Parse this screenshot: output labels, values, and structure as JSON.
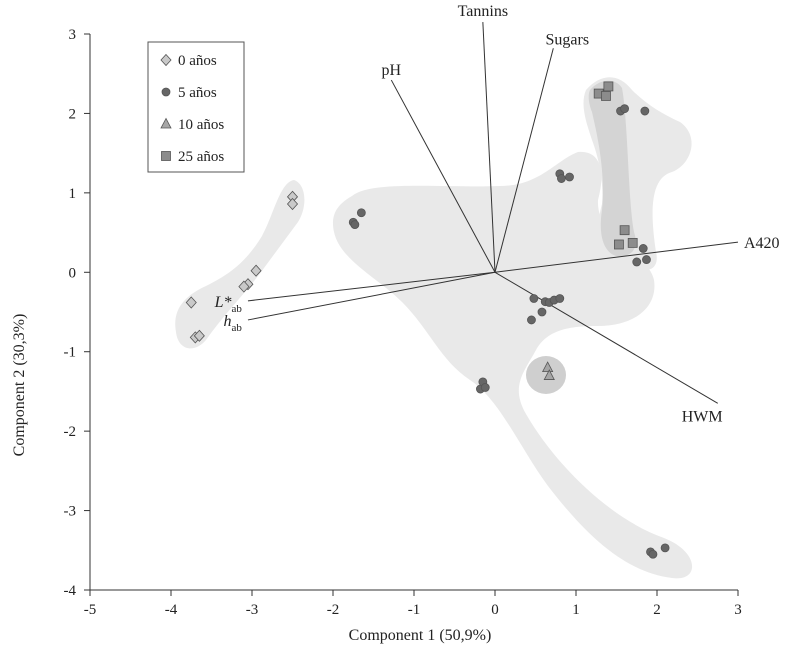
{
  "chart_data": {
    "type": "scatter",
    "title": "",
    "xlabel": "Component 1 (50,9%)",
    "ylabel": "Component 2 (30,3%)",
    "xlim": [
      -5,
      3
    ],
    "ylim": [
      -4,
      3
    ],
    "xticks": [
      "-5",
      "-4",
      "-3",
      "-2",
      "-1",
      "0",
      "1",
      "2",
      "3"
    ],
    "yticks": [
      "-4",
      "-3",
      "-2",
      "-1",
      "0",
      "1",
      "2",
      "3"
    ],
    "grid": false,
    "legend_position": "top-left",
    "series": [
      {
        "name": "0 años",
        "marker": "diamond",
        "color": "#c9c9c9",
        "points": [
          [
            -2.5,
            0.95
          ],
          [
            -2.5,
            0.86
          ],
          [
            -2.95,
            0.02
          ],
          [
            -3.05,
            -0.15
          ],
          [
            -3.1,
            -0.18
          ],
          [
            -3.75,
            -0.38
          ],
          [
            -3.7,
            -0.82
          ],
          [
            -3.65,
            -0.8
          ]
        ]
      },
      {
        "name": "5 años",
        "marker": "circle",
        "color": "#666666",
        "points": [
          [
            -1.75,
            0.63
          ],
          [
            -1.73,
            0.6
          ],
          [
            -1.65,
            0.75
          ],
          [
            0.8,
            1.24
          ],
          [
            0.82,
            1.18
          ],
          [
            0.92,
            1.2
          ],
          [
            1.55,
            2.03
          ],
          [
            1.6,
            2.06
          ],
          [
            1.85,
            2.03
          ],
          [
            1.75,
            0.13
          ],
          [
            1.83,
            0.3
          ],
          [
            1.87,
            0.16
          ],
          [
            0.48,
            -0.33
          ],
          [
            0.62,
            -0.37
          ],
          [
            0.67,
            -0.38
          ],
          [
            0.73,
            -0.35
          ],
          [
            0.8,
            -0.33
          ],
          [
            0.58,
            -0.5
          ],
          [
            0.45,
            -0.6
          ],
          [
            -0.18,
            -1.47
          ],
          [
            -0.15,
            -1.38
          ],
          [
            -0.12,
            -1.45
          ],
          [
            1.92,
            -3.52
          ],
          [
            1.95,
            -3.55
          ],
          [
            2.1,
            -3.47
          ]
        ]
      },
      {
        "name": "10 años",
        "marker": "triangle",
        "color": "#a6a6a6",
        "points": [
          [
            0.65,
            -1.2
          ],
          [
            0.67,
            -1.3
          ]
        ]
      },
      {
        "name": "25 años",
        "marker": "square",
        "color": "#8c8c8c",
        "points": [
          [
            1.28,
            2.25
          ],
          [
            1.37,
            2.22
          ],
          [
            1.4,
            2.34
          ],
          [
            1.6,
            0.53
          ],
          [
            1.53,
            0.35
          ],
          [
            1.7,
            0.37
          ]
        ]
      }
    ],
    "loadings": [
      {
        "label": "Tannins",
        "x": -0.15,
        "y": 3.15
      },
      {
        "label": "Sugars",
        "x": 0.72,
        "y": 2.82
      },
      {
        "label": "pH",
        "x": -1.28,
        "y": 2.42
      },
      {
        "label": "A420",
        "x": 3.0,
        "y": 0.38
      },
      {
        "label": "HWM",
        "x": 2.75,
        "y": -1.65
      },
      {
        "label": "L*",
        "sub": "ab",
        "x": -3.05,
        "y": -0.36
      },
      {
        "label": "h",
        "sub": "ab",
        "x": -3.05,
        "y": -0.6
      }
    ]
  }
}
